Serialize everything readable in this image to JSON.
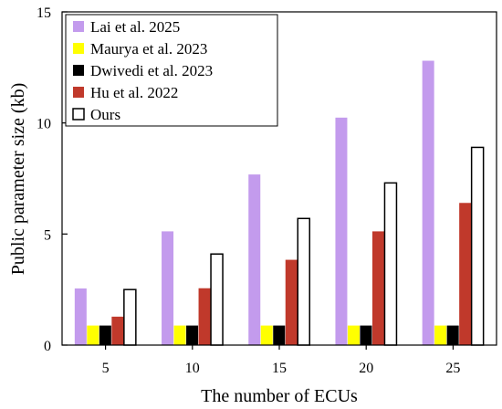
{
  "chart_data": {
    "type": "bar",
    "title": "",
    "xlabel": "The number of ECUs",
    "ylabel": "Public parameter size (kb)",
    "categories": [
      "5",
      "10",
      "15",
      "20",
      "25"
    ],
    "ylim": [
      0,
      15
    ],
    "yticks": [
      0,
      5,
      10,
      15
    ],
    "grid": false,
    "legend_position": "top-left",
    "series": [
      {
        "name": "Lai et al. 2025",
        "color": "#c39bed",
        "stroke": "none",
        "values": [
          2.55,
          5.12,
          7.68,
          10.24,
          12.8
        ]
      },
      {
        "name": "Maurya et al. 2023",
        "color": "#ffff00",
        "stroke": "none",
        "values": [
          0.88,
          0.88,
          0.88,
          0.88,
          0.88
        ]
      },
      {
        "name": "Dwivedi et al. 2023",
        "color": "#000000",
        "stroke": "none",
        "values": [
          0.88,
          0.88,
          0.88,
          0.88,
          0.88
        ]
      },
      {
        "name": "Hu et al. 2022",
        "color": "#c0392b",
        "stroke": "none",
        "values": [
          1.28,
          2.56,
          3.84,
          5.12,
          6.4
        ]
      },
      {
        "name": "Ours",
        "color": "#ffffff",
        "stroke": "#000000",
        "values": [
          2.5,
          4.1,
          5.7,
          7.3,
          8.9
        ]
      }
    ]
  }
}
